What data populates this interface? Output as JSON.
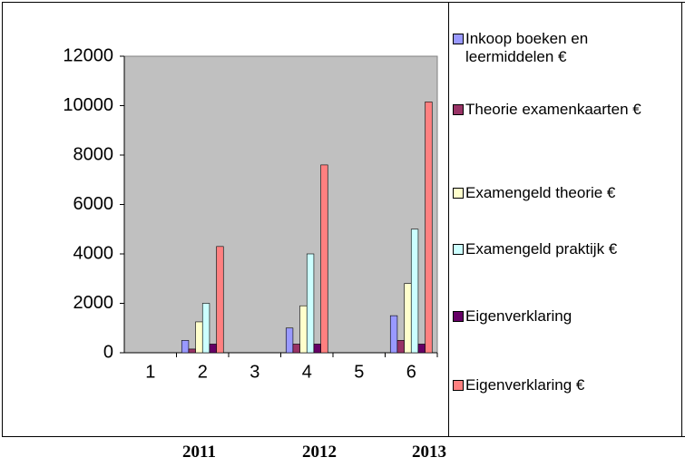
{
  "chart_data": {
    "type": "bar",
    "categories": [
      "1",
      "2",
      "3",
      "4",
      "5",
      "6"
    ],
    "series": [
      {
        "name": "Inkoop boeken en leermiddelen €",
        "color": "#9999ff",
        "values": [
          null,
          500,
          null,
          1000,
          null,
          1500
        ]
      },
      {
        "name": "Theorie examenkaarten €",
        "color": "#993366",
        "values": [
          null,
          150,
          null,
          350,
          null,
          500
        ]
      },
      {
        "name": "Examengeld theorie €",
        "color": "#ffffcc",
        "values": [
          null,
          1250,
          null,
          1900,
          null,
          2800
        ]
      },
      {
        "name": "Examengeld praktijk €",
        "color": "#ccffff",
        "values": [
          null,
          2000,
          null,
          4000,
          null,
          5000
        ]
      },
      {
        "name": "Eigenverklaring",
        "color": "#660066",
        "values": [
          null,
          350,
          null,
          350,
          null,
          350
        ]
      },
      {
        "name": "Eigenverklaring €",
        "color": "#ff8080",
        "values": [
          null,
          4300,
          null,
          7600,
          null,
          10150
        ]
      }
    ],
    "ylim": [
      0,
      12000
    ],
    "yticks": [
      0,
      2000,
      4000,
      6000,
      8000,
      10000,
      12000
    ],
    "grid": false,
    "legend": "right",
    "annotations": [
      "2011",
      "2012",
      "2013"
    ]
  }
}
